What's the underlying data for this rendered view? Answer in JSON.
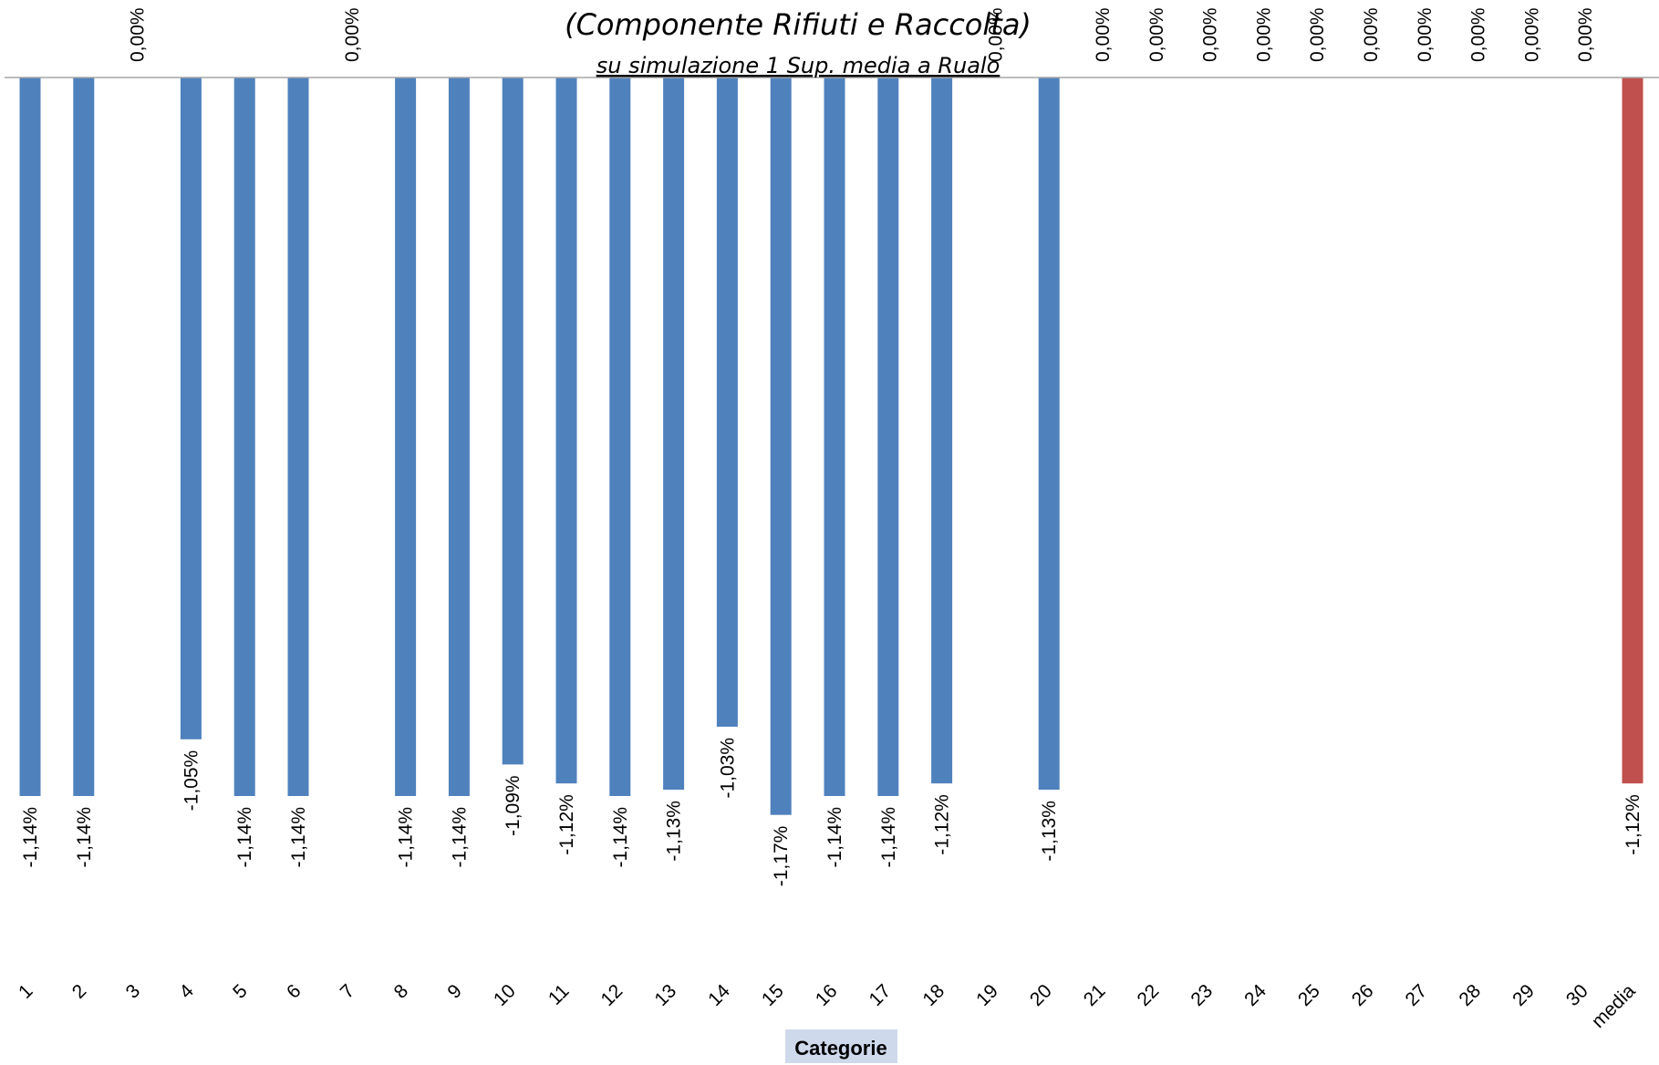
{
  "chart_data": {
    "type": "bar",
    "title": "(Componente Rifiuti  e Raccolta)",
    "subtitle": "su simulazione 1 Sup. media a Rualo",
    "xlabel": "Categorie",
    "ylabel": "",
    "ylim": [
      -1.35,
      0
    ],
    "grid": false,
    "legend": "none",
    "categories": [
      "1",
      "2",
      "3",
      "4",
      "5",
      "6",
      "7",
      "8",
      "9",
      "10",
      "11",
      "12",
      "13",
      "14",
      "15",
      "16",
      "17",
      "18",
      "19",
      "20",
      "21",
      "22",
      "23",
      "24",
      "25",
      "26",
      "27",
      "28",
      "29",
      "30",
      "media"
    ],
    "values": [
      -1.14,
      -1.14,
      0,
      -1.05,
      -1.14,
      -1.14,
      0,
      -1.14,
      -1.14,
      -1.09,
      -1.12,
      -1.14,
      -1.13,
      -1.03,
      -1.17,
      -1.14,
      -1.14,
      -1.12,
      0,
      -1.13,
      0,
      0,
      0,
      0,
      0,
      0,
      0,
      0,
      0,
      0,
      -1.12
    ],
    "data_labels": [
      "-1,14%",
      "-1,14%",
      "0,00%",
      "-1,05%",
      "-1,14%",
      "-1,14%",
      "0,00%",
      "-1,14%",
      "-1,14%",
      "-1,09%",
      "-1,12%",
      "-1,14%",
      "-1,13%",
      "-1,03%",
      "-1,17%",
      "-1,14%",
      "-1,14%",
      "-1,12%",
      "0,00%",
      "-1,13%",
      "0,00%",
      "0,00%",
      "0,00%",
      "0,00%",
      "0,00%",
      "0,00%",
      "0,00%",
      "0,00%",
      "0,00%",
      "0,00%",
      "-1,12%"
    ],
    "colors": {
      "series": "#4f81bd",
      "average": "#c0504d",
      "axis": "#a6a6a6"
    }
  }
}
